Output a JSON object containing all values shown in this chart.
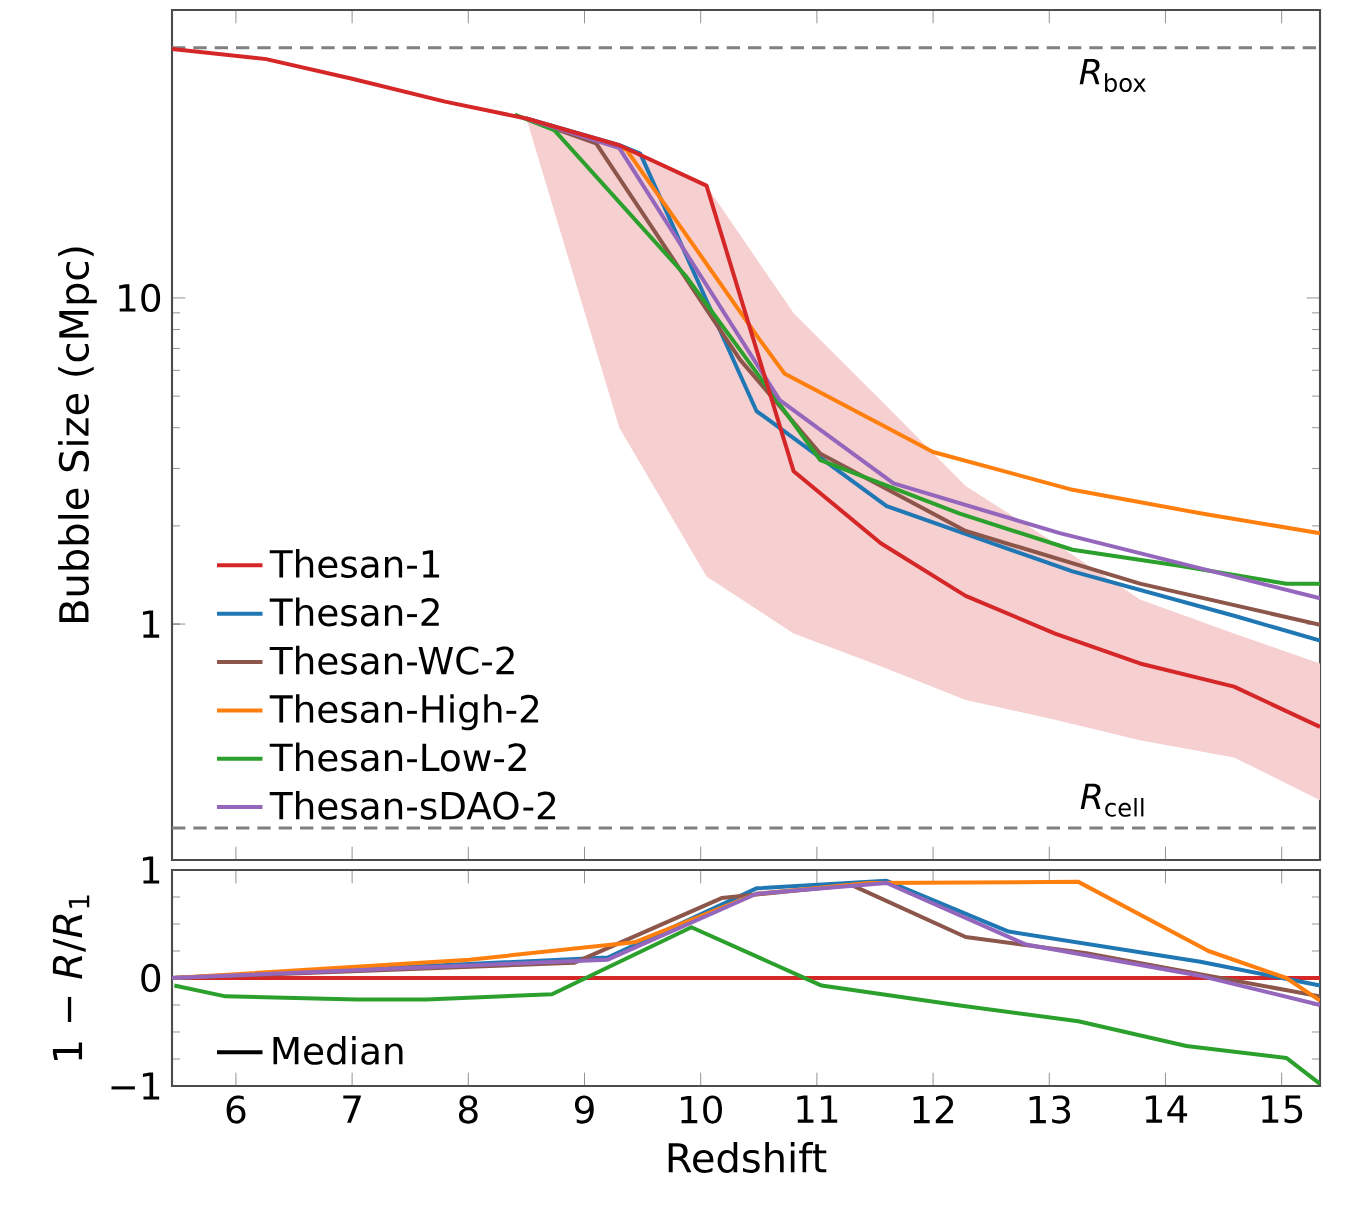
{
  "chart_data": [
    {
      "type": "line",
      "ylabel": "Bubble Size  (cMpc)",
      "log": "y",
      "xlim": [
        5.45,
        15.33
      ],
      "ylim": [
        0.189,
        76.4
      ],
      "xticks": [
        6,
        7,
        8,
        9,
        10,
        11,
        12,
        13,
        14,
        15
      ],
      "yticks": [
        1,
        10
      ],
      "tick_labels": "y",
      "legend": "bottom left",
      "ref_lines": [
        {
          "axis": "y",
          "value": 58.5,
          "label": "*R*$_{box}$",
          "color": "#808080",
          "line_style": "dashed"
        },
        {
          "axis": "y",
          "value": 0.237,
          "label": "*R*$_{cell}$",
          "color": "#808080",
          "line_style": "dashed"
        }
      ],
      "series": [
        {
          "name": "Thesan-1",
          "color": "#d62728",
          "x": [
            5.45,
            6.26,
            7.0,
            7.8,
            8.5,
            9.3,
            10.05,
            10.8,
            11.55,
            12.28,
            13.05,
            13.78,
            14.59,
            15.33
          ],
          "values": [
            58,
            54,
            47,
            40,
            35.5,
            29.4,
            22.1,
            2.94,
            1.77,
            1.22,
            0.935,
            0.757,
            0.643,
            0.484
          ],
          "lower": [
            null,
            null,
            null,
            null,
            35.5,
            4.0,
            1.4,
            0.935,
            0.743,
            0.585,
            0.509,
            0.44,
            0.39,
            0.288
          ],
          "upper": [
            null,
            null,
            null,
            null,
            35.5,
            29.4,
            22.1,
            8.97,
            4.86,
            2.65,
            1.77,
            1.19,
            0.935,
            0.757
          ]
        },
        {
          "name": "Thesan-2",
          "color": "#1f77b4",
          "x": [
            8.5,
            9.3,
            9.48,
            10.48,
            11.6,
            13.2,
            14.59,
            15.33
          ],
          "values": [
            35.5,
            29.4,
            27.7,
            4.5,
            2.3,
            1.45,
            1.06,
            0.89
          ]
        },
        {
          "name": "Thesan-WC-2",
          "color": "#8c564b",
          "x": [
            8.5,
            9.1,
            10.11,
            10.34,
            11.03,
            12.28,
            13.78,
            15.33
          ],
          "values": [
            35.5,
            29.8,
            8.57,
            6.46,
            3.33,
            1.93,
            1.33,
            0.995
          ]
        },
        {
          "name": "Thesan-High-2",
          "color": "#ff7f0e",
          "x": [
            8.5,
            9.36,
            10.51,
            10.72,
            12.0,
            13.2,
            14.35,
            15.33
          ],
          "values": [
            35.5,
            28.5,
            7.43,
            5.87,
            3.37,
            2.58,
            2.17,
            1.9
          ]
        },
        {
          "name": "Thesan-Low-2",
          "color": "#2ca02c",
          "x": [
            8.4,
            8.74,
            9.87,
            10.34,
            11.03,
            12.23,
            13.2,
            14.12,
            15.04,
            15.33
          ],
          "values": [
            36.5,
            32.7,
            11.7,
            6.92,
            3.18,
            2.18,
            1.69,
            1.51,
            1.33,
            1.33
          ]
        },
        {
          "name": "Thesan-sDAO-2",
          "color": "#9467bd",
          "x": [
            8.5,
            9.3,
            10.68,
            11.66,
            13.09,
            15.33
          ],
          "values": [
            35.5,
            28.8,
            4.86,
            2.7,
            1.9,
            1.2
          ]
        }
      ]
    },
    {
      "type": "line",
      "xlabel": "Redshift",
      "ylabel": "1 − *R*/*R*$_{1}$",
      "xlim": [
        5.45,
        15.33
      ],
      "ylim": [
        -1,
        1
      ],
      "xticks": [
        6,
        7,
        8,
        9,
        10,
        11,
        12,
        13,
        14,
        15
      ],
      "yticks": [
        {
          "value": -1,
          "label": "−1"
        },
        0,
        1
      ],
      "legend": "bottom left",
      "series": [
        {
          "name": "Median",
          "color": "#000000"
        },
        {
          "color": "#d62728",
          "x": [
            5.45,
            15.33
          ],
          "values": [
            0,
            0
          ]
        },
        {
          "color": "#1f77b4",
          "x": [
            5.45,
            9.2,
            10.48,
            11.6,
            12.65,
            14.3,
            15.33
          ],
          "values": [
            0,
            0.19,
            0.83,
            0.9,
            0.43,
            0.15,
            -0.07
          ]
        },
        {
          "color": "#8c564b",
          "x": [
            5.45,
            8.91,
            10.18,
            11.3,
            12.28,
            13.32,
            15.33
          ],
          "values": [
            0,
            0.14,
            0.74,
            0.86,
            0.38,
            0.23,
            -0.17
          ]
        },
        {
          "color": "#ff7f0e",
          "x": [
            5.45,
            5.93,
            8.01,
            9.43,
            10.48,
            11.45,
            13.25,
            14.37,
            15.04,
            15.33
          ],
          "values": [
            0,
            0.03,
            0.17,
            0.33,
            0.78,
            0.88,
            0.89,
            0.25,
            0,
            -0.21
          ]
        },
        {
          "color": "#2ca02c",
          "x": [
            5.47,
            5.91,
            7.04,
            7.64,
            8.72,
            9.92,
            11.04,
            12.2,
            13.25,
            14.18,
            15.04,
            15.33
          ],
          "values": [
            -0.07,
            -0.17,
            -0.2,
            -0.2,
            -0.15,
            0.47,
            -0.07,
            -0.25,
            -0.4,
            -0.63,
            -0.74,
            -0.98
          ]
        },
        {
          "color": "#9467bd",
          "x": [
            5.45,
            9.2,
            10.48,
            11.6,
            12.8,
            14.3,
            15.33
          ],
          "values": [
            0,
            0.17,
            0.78,
            0.88,
            0.31,
            0.02,
            -0.25
          ]
        }
      ]
    }
  ]
}
